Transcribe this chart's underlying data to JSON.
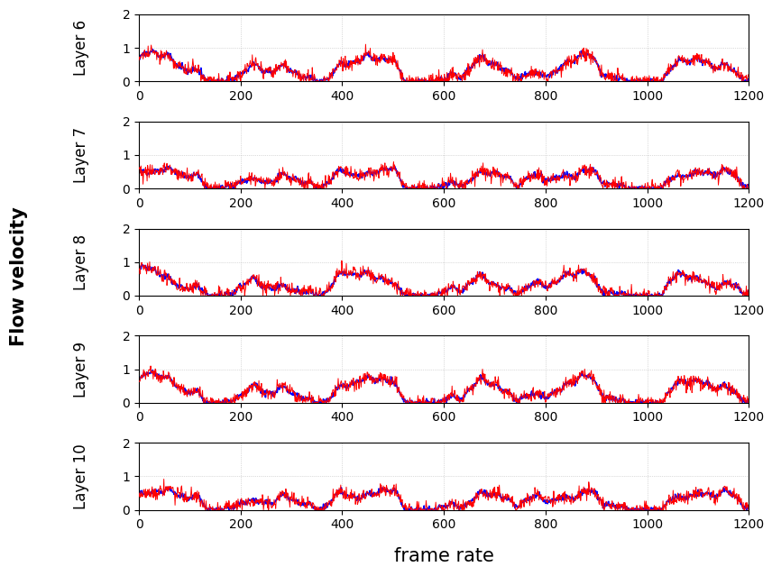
{
  "layers": [
    6,
    7,
    8,
    9,
    10
  ],
  "n_points": 1200,
  "xlim": [
    0,
    1200
  ],
  "ylim": [
    0,
    2
  ],
  "yticks": [
    0,
    1,
    2
  ],
  "xticks": [
    0,
    200,
    400,
    600,
    800,
    1000,
    1200
  ],
  "xlabel": "frame rate",
  "ylabel": "Flow velocity",
  "blue_color": "#0000FF",
  "red_color": "#FF0000",
  "blue_linewidth": 1.2,
  "red_linewidth": 0.7,
  "grid_color": "#bbbbbb",
  "grid_style": "dotted",
  "background_color": "#ffffff",
  "fig_background": "#ffffff",
  "label_fontsize": 14,
  "tick_fontsize": 10,
  "layer_label_fontsize": 12,
  "xlabel_fontsize": 15,
  "ylabel_fontsize": 15
}
